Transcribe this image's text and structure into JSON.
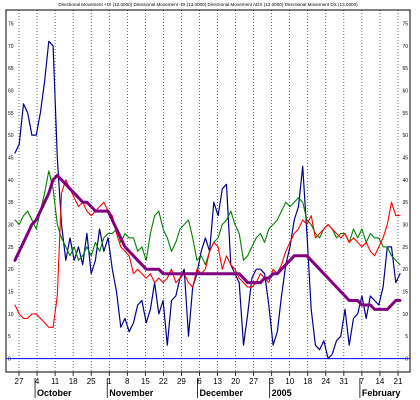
{
  "chart_data": {
    "type": "line",
    "title": "Directional Movement +DI (13.0000) Directional Movement -DI (13.0000) Directional Movement ADX (13.0000) Directional Movement DX (13.0000)",
    "ylim": [
      -3,
      78
    ],
    "y_ticks": [
      "0",
      "5",
      "10",
      "15",
      "20",
      "25",
      "30",
      "35",
      "40",
      "45",
      "50",
      "55",
      "60",
      "65",
      "70",
      "75"
    ],
    "x_tick_labels": [
      "27",
      "4",
      "11",
      "18",
      "25",
      "1",
      "8",
      "15",
      "22",
      "29",
      "6",
      "13",
      "20",
      "27",
      "3",
      "10",
      "18",
      "24",
      "31",
      "7",
      "14",
      "21"
    ],
    "month_labels": [
      {
        "label": "October",
        "at_tick": 1
      },
      {
        "label": "November",
        "at_tick": 5
      },
      {
        "label": "December",
        "at_tick": 10
      },
      {
        "label": "2005",
        "at_tick": 14
      },
      {
        "label": "February",
        "at_tick": 19
      }
    ],
    "series": [
      {
        "color": "#00008b",
        "width": 1.2,
        "values": [
          46,
          48,
          57,
          55,
          50,
          50,
          55,
          62,
          71,
          70,
          45,
          30,
          22,
          27,
          22,
          25,
          21,
          28,
          19,
          22,
          29,
          24,
          27,
          20,
          15,
          7,
          9,
          6,
          8,
          12,
          13,
          8,
          11,
          17,
          10,
          13,
          3,
          13,
          14,
          18,
          20,
          5,
          16,
          19,
          24,
          27,
          24,
          35,
          32,
          38,
          39,
          21,
          19,
          17,
          3,
          10,
          18,
          20,
          20,
          19,
          12,
          3,
          6,
          14,
          21,
          25,
          31,
          34,
          43,
          28,
          11,
          3,
          2,
          4,
          0,
          1,
          4,
          5,
          11,
          3,
          9,
          10,
          14,
          9,
          14,
          13,
          12,
          16,
          25,
          25,
          17,
          19
        ]
      },
      {
        "color": "#008000",
        "width": 1.1,
        "values": [
          31,
          30,
          32,
          33,
          31,
          29,
          33,
          37,
          42,
          38,
          30,
          27,
          25,
          23,
          25,
          22,
          23,
          25,
          23,
          26,
          24,
          27,
          28,
          28,
          29,
          26,
          28,
          27,
          27,
          24,
          25,
          22,
          28,
          32,
          33,
          29,
          27,
          24,
          26,
          29,
          30,
          31,
          27,
          22,
          23,
          21,
          24,
          26,
          27,
          30,
          31,
          33,
          30,
          28,
          22,
          23,
          25,
          27,
          28,
          26,
          29,
          30,
          31,
          33,
          35,
          34,
          35,
          36,
          35,
          31,
          30,
          28,
          27,
          29,
          30,
          29,
          27,
          28,
          28,
          26,
          29,
          27,
          29,
          26,
          28,
          27,
          27,
          25,
          25,
          23,
          22,
          21
        ]
      },
      {
        "color": "#ff0000",
        "width": 1.1,
        "values": [
          12,
          10,
          9,
          9,
          10,
          10,
          9,
          8,
          7,
          7,
          14,
          37,
          40,
          38,
          36,
          34,
          35,
          33,
          32,
          33,
          34,
          35,
          33,
          32,
          28,
          25,
          24,
          23,
          19,
          20,
          19,
          18,
          19,
          17,
          18,
          17,
          18,
          20,
          17,
          18,
          19,
          17,
          16,
          20,
          19,
          20,
          24,
          26,
          25,
          20,
          23,
          21,
          20,
          18,
          17,
          16,
          16,
          17,
          19,
          18,
          17,
          20,
          19,
          21,
          24,
          26,
          28,
          29,
          31,
          30,
          32,
          27,
          28,
          29,
          30,
          29,
          28,
          27,
          28,
          26,
          27,
          26,
          25,
          26,
          24,
          23,
          25,
          27,
          30,
          35,
          32,
          32
        ]
      },
      {
        "color": "#800080",
        "width": 3,
        "values": [
          22,
          24,
          26,
          28,
          30,
          31,
          33,
          35,
          37,
          40,
          41,
          40,
          39,
          38,
          37,
          36,
          35,
          35,
          34,
          33,
          33,
          33,
          33,
          31,
          29,
          27,
          25,
          24,
          23,
          22,
          21,
          20,
          20,
          20,
          20,
          19,
          19,
          19,
          19,
          19,
          19,
          19,
          19,
          19,
          19,
          19,
          19,
          19,
          19,
          19,
          19,
          19,
          19,
          19,
          18,
          17,
          17,
          17,
          17,
          18,
          18,
          19,
          19,
          20,
          21,
          22,
          23,
          23,
          23,
          23,
          22,
          21,
          20,
          19,
          18,
          17,
          16,
          15,
          14,
          13,
          13,
          13,
          12,
          12,
          12,
          11,
          11,
          11,
          11,
          12,
          13,
          13
        ]
      }
    ],
    "zero_line_color": "#0000ff",
    "grid": "vertical dotted"
  }
}
